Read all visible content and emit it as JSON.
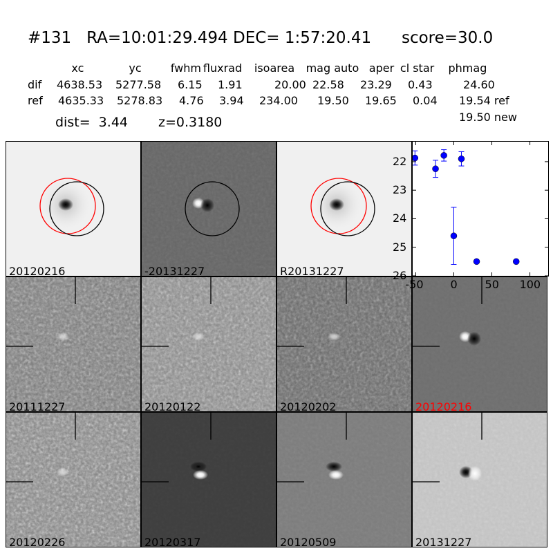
{
  "header": {
    "title": "#131   RA=10:01:29.494 DEC= 1:57:20.41      score=30.0",
    "columns": [
      "xc",
      "yc",
      "fwhm",
      "fluxrad",
      "isoarea",
      "mag auto",
      "aper",
      "cl star",
      "phmag"
    ],
    "rows": [
      {
        "label": "dif",
        "values": [
          "4638.53",
          "5277.58",
          "6.15",
          "1.91",
          "20.00",
          "22.58",
          "23.29",
          "0.43",
          "24.60"
        ]
      },
      {
        "label": "ref",
        "values": [
          "4635.33",
          "5278.83",
          "4.76",
          "3.94",
          "234.00",
          "19.50",
          "19.65",
          "0.04",
          "19.54 ref"
        ]
      }
    ],
    "phmag_new": "19.50 new",
    "dist": "dist=  3.44",
    "z": "z=0.3180"
  },
  "panels": [
    {
      "label": "20120216",
      "bg": "#f0f0f0",
      "noise": 0.05,
      "type": "source",
      "circles": true
    },
    {
      "label": "-20131227",
      "bg": "#666666",
      "noise": 0.25,
      "type": "dipole-h",
      "circles": "black"
    },
    {
      "label": "R20131227",
      "bg": "#f0f0f0",
      "noise": 0.05,
      "type": "source",
      "circles": true
    },
    {
      "label": "20111227",
      "bg": "#7a7a7a",
      "noise": 0.9,
      "type": "faint",
      "cross": true
    },
    {
      "label": "20120122",
      "bg": "#8a8a8a",
      "noise": 0.8,
      "type": "faint",
      "cross": true
    },
    {
      "label": "20120202",
      "bg": "#6a6a6a",
      "noise": 0.9,
      "type": "faint",
      "cross": true
    },
    {
      "label": "20120216",
      "bg": "#6e6e6e",
      "noise": 0.12,
      "type": "dipole-h",
      "cross": true,
      "label_color": "#ff0000"
    },
    {
      "label": "20120226",
      "bg": "#858585",
      "noise": 0.9,
      "type": "faint",
      "cross": true
    },
    {
      "label": "20120317",
      "bg": "#3e3e3e",
      "noise": 0.15,
      "type": "dipole-v",
      "cross": true
    },
    {
      "label": "20120509",
      "bg": "#7c7c7c",
      "noise": 0.15,
      "type": "dipole-v",
      "cross": true
    },
    {
      "label": "20131227",
      "bg": "#c2c2c2",
      "noise": 0.35,
      "type": "dipole-h2",
      "cross": true
    }
  ],
  "chart_data": {
    "type": "scatter",
    "title": "",
    "xlabel": "",
    "ylabel": "",
    "xlim": [
      -54,
      124
    ],
    "ylim": [
      26,
      21.3
    ],
    "y_inverted": true,
    "xticks": [
      -50,
      0,
      50,
      100
    ],
    "yticks": [
      22,
      23,
      24,
      25,
      26
    ],
    "color": "#0000ff",
    "points": [
      {
        "x": -51,
        "y": 21.87,
        "err": 0.25
      },
      {
        "x": -24,
        "y": 22.25,
        "err": 0.3
      },
      {
        "x": -13,
        "y": 21.78,
        "err": 0.2
      },
      {
        "x": 10,
        "y": 21.9,
        "err": 0.25
      },
      {
        "x": 0,
        "y": 24.6,
        "err": 1.0
      },
      {
        "x": 30,
        "y": 25.5,
        "err": 0.05
      },
      {
        "x": 82,
        "y": 25.5,
        "err": 0.05
      }
    ]
  }
}
